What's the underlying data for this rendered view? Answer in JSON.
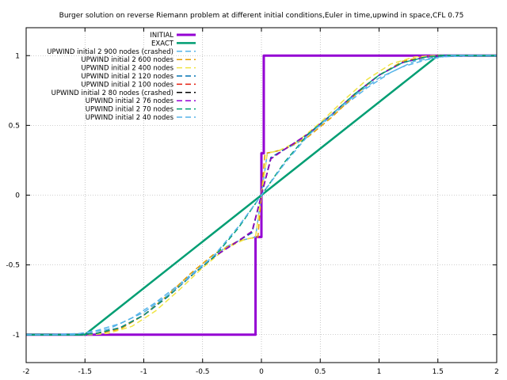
{
  "chart_data": {
    "type": "line",
    "title": "Burger solution on reverse Riemann problem at different initial conditions,Euler in time,upwind in space,CFL 0.75",
    "xlabel": "",
    "ylabel": "",
    "xlim": [
      -2,
      2
    ],
    "ylim": [
      -1.2,
      1.2
    ],
    "grid": true,
    "legend_position": "top-left",
    "x_ticks": [
      "-2",
      "-1.5",
      "-1",
      "-0.5",
      "0",
      "0.5",
      "1",
      "1.5",
      "2"
    ],
    "y_ticks": [
      "-1",
      "-0.5",
      "0",
      "0.5",
      "1"
    ],
    "series": [
      {
        "name": "INITIAL",
        "color": "#9400d3",
        "dash": "solid",
        "width": 3,
        "x": [
          -2,
          -0.05,
          -0.05,
          0,
          0,
          0.02,
          0.02,
          2
        ],
        "y": [
          -1,
          -1,
          -0.3,
          -0.3,
          0.3,
          0.3,
          1,
          1
        ]
      },
      {
        "name": "EXACT",
        "color": "#009e73",
        "dash": "solid",
        "width": 2.5,
        "x": [
          -2,
          -1.5,
          1.5,
          2
        ],
        "y": [
          -1,
          -1,
          1,
          1
        ]
      },
      {
        "name": "UPWIND initial 2 900 nodes (crashed)",
        "color": "#56b4e9",
        "dash": "dashed",
        "width": 1.5,
        "x": [
          -2,
          -1.8,
          -1.5,
          -1.3,
          -1.1,
          -0.9,
          -0.7,
          -0.5,
          -0.3,
          -0.2,
          -0.1,
          -0.05,
          0,
          0.05,
          0.1,
          0.2,
          0.3,
          0.5,
          0.7,
          0.9,
          1.1,
          1.3,
          1.5,
          1.8,
          2
        ],
        "y": [
          -1,
          -1,
          -0.99,
          -0.96,
          -0.88,
          -0.77,
          -0.64,
          -0.5,
          -0.37,
          -0.33,
          -0.31,
          -0.3,
          0,
          0.3,
          0.31,
          0.33,
          0.37,
          0.5,
          0.64,
          0.77,
          0.88,
          0.96,
          0.99,
          1,
          1
        ]
      },
      {
        "name": "UPWIND initial 2 600 nodes",
        "color": "#e69f00",
        "dash": "dashed",
        "width": 1.5,
        "x": [
          -2,
          -1.5,
          -1.4,
          -1.2,
          -1,
          -0.8,
          -0.6,
          -0.4,
          -0.2,
          -0.1,
          -0.03,
          0,
          0.03,
          0.1,
          0.2,
          0.4,
          0.6,
          0.8,
          1,
          1.2,
          1.4,
          1.5,
          2
        ],
        "y": [
          -1,
          -1,
          -0.995,
          -0.96,
          -0.86,
          -0.72,
          -0.56,
          -0.42,
          -0.33,
          -0.31,
          -0.3,
          0,
          0.3,
          0.31,
          0.33,
          0.42,
          0.56,
          0.72,
          0.86,
          0.96,
          0.995,
          1,
          1
        ]
      },
      {
        "name": "UPWIND initial 2 400 nodes",
        "color": "#f0e442",
        "dash": "dashed",
        "width": 1.5,
        "x": [
          -2,
          -1.45,
          -1.3,
          -1.1,
          -0.9,
          -0.7,
          -0.5,
          -0.3,
          -0.15,
          -0.05,
          0,
          0.05,
          0.15,
          0.3,
          0.5,
          0.7,
          0.9,
          1.1,
          1.3,
          1.45,
          2
        ],
        "y": [
          -1,
          -1,
          -0.99,
          -0.94,
          -0.83,
          -0.68,
          -0.52,
          -0.38,
          -0.32,
          -0.3,
          0,
          0.3,
          0.32,
          0.38,
          0.52,
          0.68,
          0.83,
          0.94,
          0.99,
          1,
          1
        ]
      },
      {
        "name": "UPWIND initial 2 120 nodes",
        "color": "#0072b2",
        "dash": "dashed",
        "width": 1.5,
        "x": [
          -2,
          -1.55,
          -1.4,
          -1.2,
          -1,
          -0.8,
          -0.6,
          -0.4,
          -0.2,
          -0.08,
          0,
          0.08,
          0.2,
          0.4,
          0.6,
          0.8,
          1,
          1.2,
          1.4,
          1.55,
          2
        ],
        "y": [
          -1,
          -1,
          -0.99,
          -0.95,
          -0.86,
          -0.73,
          -0.58,
          -0.44,
          -0.33,
          -0.27,
          0,
          0.27,
          0.33,
          0.44,
          0.58,
          0.73,
          0.86,
          0.95,
          0.99,
          1,
          1
        ]
      },
      {
        "name": "UPWIND initial 2 100 nodes",
        "color": "#e51e10",
        "dash": "dashed",
        "width": 1.5,
        "x": [
          -2,
          -1.55,
          -1.4,
          -1.2,
          -1,
          -0.8,
          -0.6,
          -0.4,
          -0.2,
          -0.08,
          0,
          0.08,
          0.2,
          0.4,
          0.6,
          0.8,
          1,
          1.2,
          1.4,
          1.55,
          2
        ],
        "y": [
          -1,
          -1,
          -0.99,
          -0.95,
          -0.86,
          -0.73,
          -0.58,
          -0.44,
          -0.33,
          -0.26,
          0,
          0.26,
          0.33,
          0.44,
          0.58,
          0.73,
          0.86,
          0.95,
          0.99,
          1,
          1
        ]
      },
      {
        "name": "UPWIND initial 2 80 nodes  (crashed)",
        "color": "#000000",
        "dash": "dashed",
        "width": 1.5,
        "x": [
          -2,
          -1.55,
          -1.4,
          -1.2,
          -1,
          -0.8,
          -0.6,
          -0.4,
          -0.2,
          -0.08,
          0,
          0.08,
          0.2,
          0.4,
          0.6,
          0.8,
          1,
          1.2,
          1.4,
          1.55,
          2
        ],
        "y": [
          -1,
          -1,
          -0.99,
          -0.95,
          -0.86,
          -0.73,
          -0.58,
          -0.44,
          -0.33,
          -0.26,
          0,
          0.26,
          0.33,
          0.44,
          0.58,
          0.73,
          0.86,
          0.95,
          0.99,
          1,
          1
        ]
      },
      {
        "name": "UPWIND initial 2 76 nodes",
        "color": "#9400d3",
        "dash": "dashed",
        "width": 1.5,
        "x": [
          -2,
          -1.55,
          -1.4,
          -1.2,
          -1,
          -0.8,
          -0.6,
          -0.4,
          -0.2,
          -0.08,
          0,
          0.08,
          0.2,
          0.4,
          0.6,
          0.8,
          1,
          1.2,
          1.4,
          1.55,
          2
        ],
        "y": [
          -1,
          -1,
          -0.99,
          -0.95,
          -0.86,
          -0.73,
          -0.58,
          -0.44,
          -0.33,
          -0.26,
          0,
          0.26,
          0.33,
          0.44,
          0.58,
          0.73,
          0.86,
          0.95,
          0.99,
          1,
          1
        ]
      },
      {
        "name": "UPWIND initial 2 70 nodes",
        "color": "#009e73",
        "dash": "dashed",
        "width": 1.5,
        "x": [
          -2,
          -1.55,
          -1.4,
          -1.2,
          -1,
          -0.8,
          -0.6,
          -0.4,
          -0.2,
          0,
          0.2,
          0.4,
          0.6,
          0.8,
          1,
          1.2,
          1.4,
          1.55,
          2
        ],
        "y": [
          -1,
          -1,
          -0.99,
          -0.95,
          -0.86,
          -0.73,
          -0.58,
          -0.44,
          -0.24,
          0,
          0.24,
          0.44,
          0.58,
          0.73,
          0.86,
          0.95,
          0.99,
          1,
          1
        ]
      },
      {
        "name": "UPWIND initial 2 40 nodes",
        "color": "#56b4e9",
        "dash": "dashed",
        "width": 1.5,
        "x": [
          -2,
          -1.6,
          -1.4,
          -1.2,
          -1,
          -0.8,
          -0.6,
          -0.4,
          -0.2,
          0,
          0.2,
          0.4,
          0.6,
          0.8,
          1,
          1.2,
          1.4,
          1.6,
          2
        ],
        "y": [
          -1,
          -1,
          -0.97,
          -0.92,
          -0.84,
          -0.72,
          -0.58,
          -0.43,
          -0.23,
          0,
          0.23,
          0.43,
          0.58,
          0.72,
          0.84,
          0.92,
          0.97,
          1,
          1
        ]
      }
    ]
  }
}
